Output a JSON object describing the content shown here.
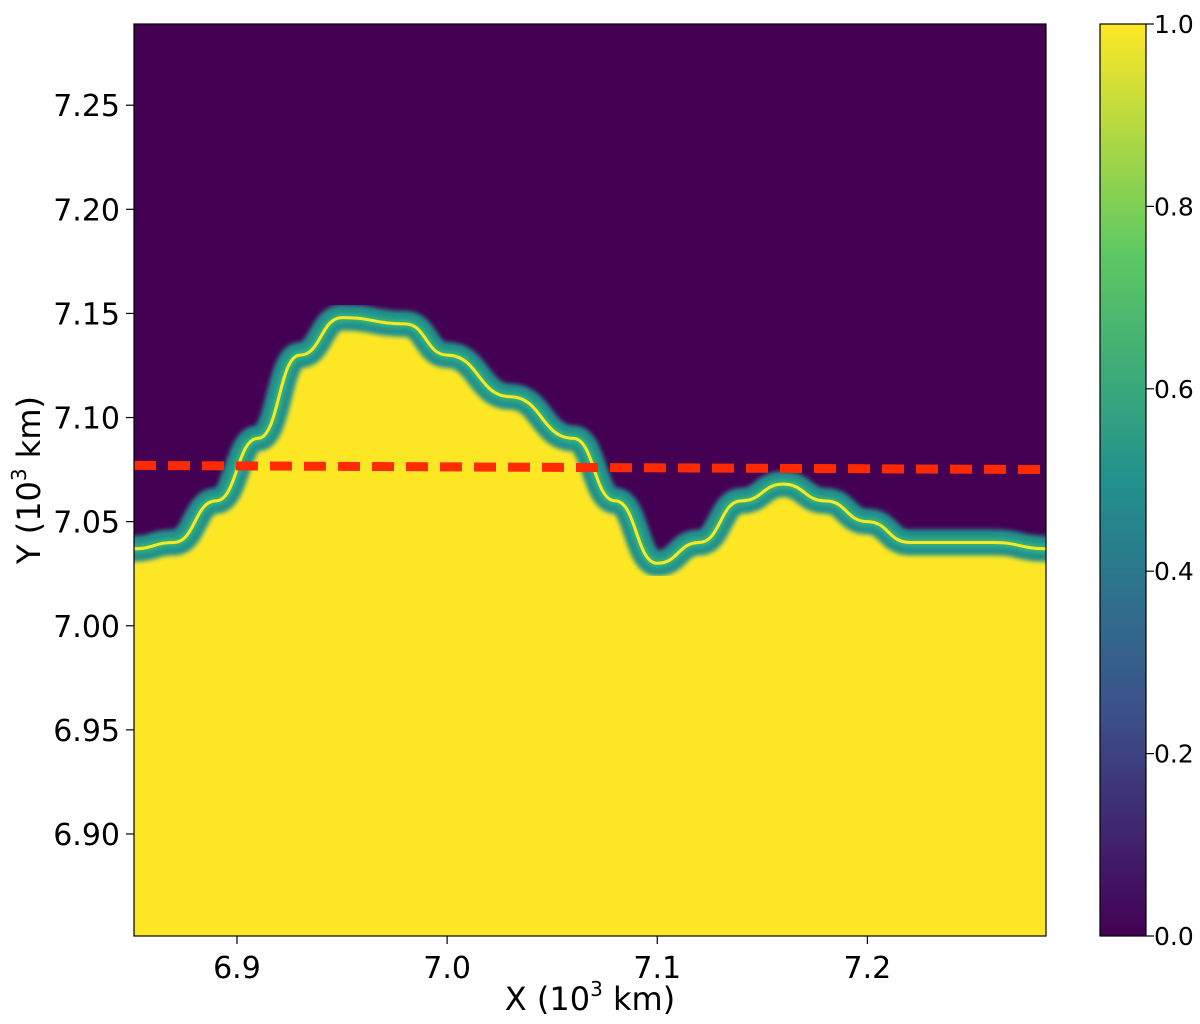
{
  "chart_data": {
    "type": "heatmap",
    "title": "",
    "xlabel": "X (10",
    "xlabel_sup": "3",
    "xlabel_suffix": " km)",
    "ylabel": "Y (10",
    "ylabel_sup": "3",
    "ylabel_suffix": " km)",
    "xlim": [
      6.851,
      7.285
    ],
    "ylim": [
      6.851,
      7.289
    ],
    "x_ticks": [
      {
        "value": 6.9,
        "label": "6.9"
      },
      {
        "value": 7.0,
        "label": "7.0"
      },
      {
        "value": 7.1,
        "label": "7.1"
      },
      {
        "value": 7.2,
        "label": "7.2"
      }
    ],
    "y_ticks": [
      {
        "value": 6.9,
        "label": "6.90"
      },
      {
        "value": 6.95,
        "label": "6.95"
      },
      {
        "value": 7.0,
        "label": "7.00"
      },
      {
        "value": 7.05,
        "label": "7.05"
      },
      {
        "value": 7.1,
        "label": "7.10"
      },
      {
        "value": 7.15,
        "label": "7.15"
      },
      {
        "value": 7.2,
        "label": "7.20"
      },
      {
        "value": 7.25,
        "label": "7.25"
      }
    ],
    "colorbar": {
      "colormap": "viridis",
      "range": [
        0.0,
        1.0
      ],
      "ticks": [
        {
          "value": 0.0,
          "label": "0.0"
        },
        {
          "value": 0.2,
          "label": "0.2"
        },
        {
          "value": 0.4,
          "label": "0.4"
        },
        {
          "value": 0.6,
          "label": "0.6"
        },
        {
          "value": 0.8,
          "label": "0.8"
        },
        {
          "value": 1.0,
          "label": "1.0"
        }
      ],
      "colors": [
        "#440154",
        "#3b528b",
        "#21918c",
        "#5ec962",
        "#fde725"
      ]
    },
    "field": {
      "upper_value": 0.0,
      "lower_value": 1.0,
      "upper_color": "#440154",
      "lower_color": "#fde725",
      "mixing_color": "#21918c",
      "mixing_light_color": "#35b779",
      "interface": {
        "x": [
          6.851,
          6.87,
          6.89,
          6.91,
          6.93,
          6.95,
          6.98,
          7.0,
          7.03,
          7.06,
          7.08,
          7.1,
          7.12,
          7.14,
          7.16,
          7.18,
          7.2,
          7.22,
          7.24,
          7.26,
          7.285
        ],
        "y": [
          7.037,
          7.04,
          7.06,
          7.09,
          7.13,
          7.148,
          7.145,
          7.13,
          7.11,
          7.09,
          7.06,
          7.03,
          7.04,
          7.06,
          7.068,
          7.06,
          7.05,
          7.04,
          7.04,
          7.04,
          7.037
        ]
      }
    },
    "reference_line": {
      "style": "dashed",
      "color": "#ff2a00",
      "x": [
        6.851,
        7.285
      ],
      "y": [
        7.077,
        7.075
      ]
    }
  }
}
